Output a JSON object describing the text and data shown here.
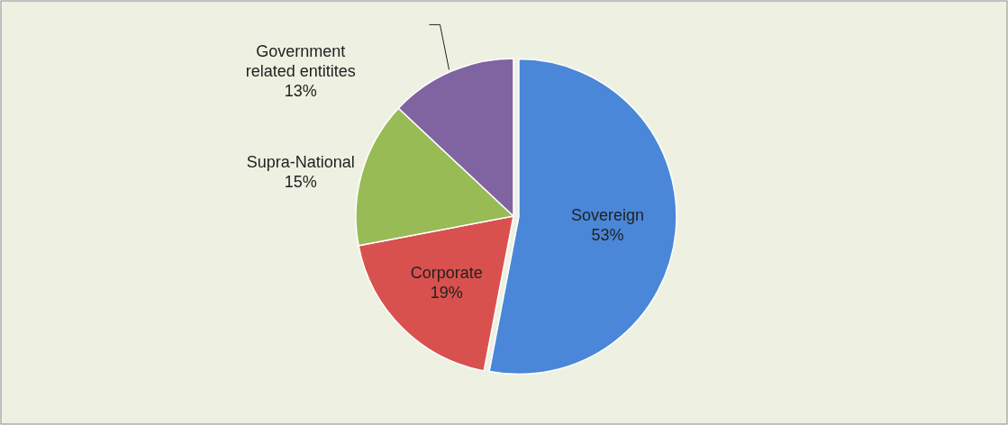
{
  "chart_data": {
    "type": "pie",
    "categories": [
      "Sovereign",
      "Corporate",
      "Supra-National",
      "Government related entitites"
    ],
    "values": [
      53,
      19,
      15,
      13
    ],
    "colors": [
      "#4a87d8",
      "#d9514e",
      "#98bb55",
      "#8064a2"
    ],
    "value_labels": [
      "53%",
      "19%",
      "15%",
      "13%"
    ]
  }
}
